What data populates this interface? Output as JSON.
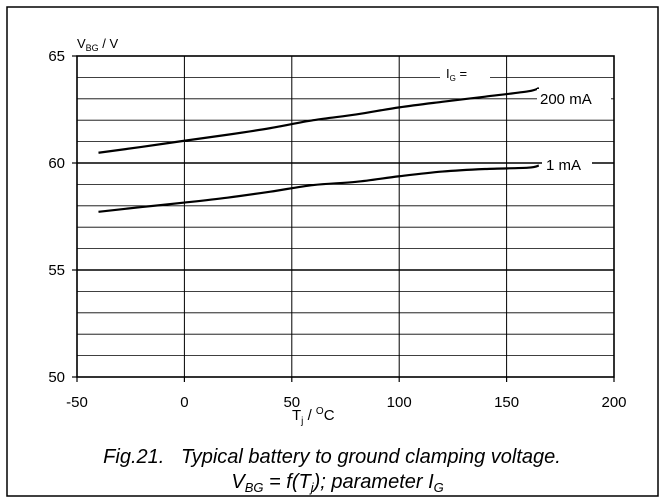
{
  "chart_data": {
    "type": "line",
    "title": "",
    "ylabel": {
      "main": "V",
      "sub": "BG",
      "unit": " / V"
    },
    "xlabel": {
      "main": "T",
      "sub": "j",
      "mid": " / ",
      "sup": "O",
      "unit": "C"
    },
    "xlim": [
      -50,
      200
    ],
    "ylim": [
      50,
      65
    ],
    "x_ticks": [
      -50,
      0,
      50,
      100,
      150,
      200
    ],
    "x_tick_labels": [
      "-50",
      "0",
      "50",
      "100",
      "150",
      "200"
    ],
    "y_ticks": [
      50,
      55,
      60,
      65
    ],
    "y_tick_labels": [
      "50",
      "55",
      "60",
      "65"
    ],
    "grid": true,
    "minor_y_step": 1,
    "legend_header": {
      "main": "I",
      "sub": "G",
      "suffix": " ="
    },
    "series": [
      {
        "name": "200 mA",
        "x": [
          -40,
          -20,
          0,
          20,
          40,
          60,
          80,
          100,
          120,
          140,
          160,
          165
        ],
        "y": [
          60.48,
          60.75,
          61.04,
          61.32,
          61.63,
          62.0,
          62.27,
          62.6,
          62.86,
          63.1,
          63.35,
          63.5
        ]
      },
      {
        "name": "1 mA",
        "x": [
          -40,
          -20,
          0,
          20,
          40,
          60,
          80,
          100,
          120,
          140,
          160,
          165
        ],
        "y": [
          57.72,
          57.94,
          58.15,
          58.38,
          58.66,
          58.97,
          59.12,
          59.38,
          59.6,
          59.72,
          59.78,
          59.88
        ]
      }
    ]
  },
  "caption": {
    "line1": "Fig.21.   Typical battery to ground clamping voltage.",
    "line2": {
      "v": "V",
      "v_sub": "BG",
      "mid": " = f(T",
      "t_sub": "j",
      "end": "); parameter I",
      "i_sub": "G"
    }
  }
}
